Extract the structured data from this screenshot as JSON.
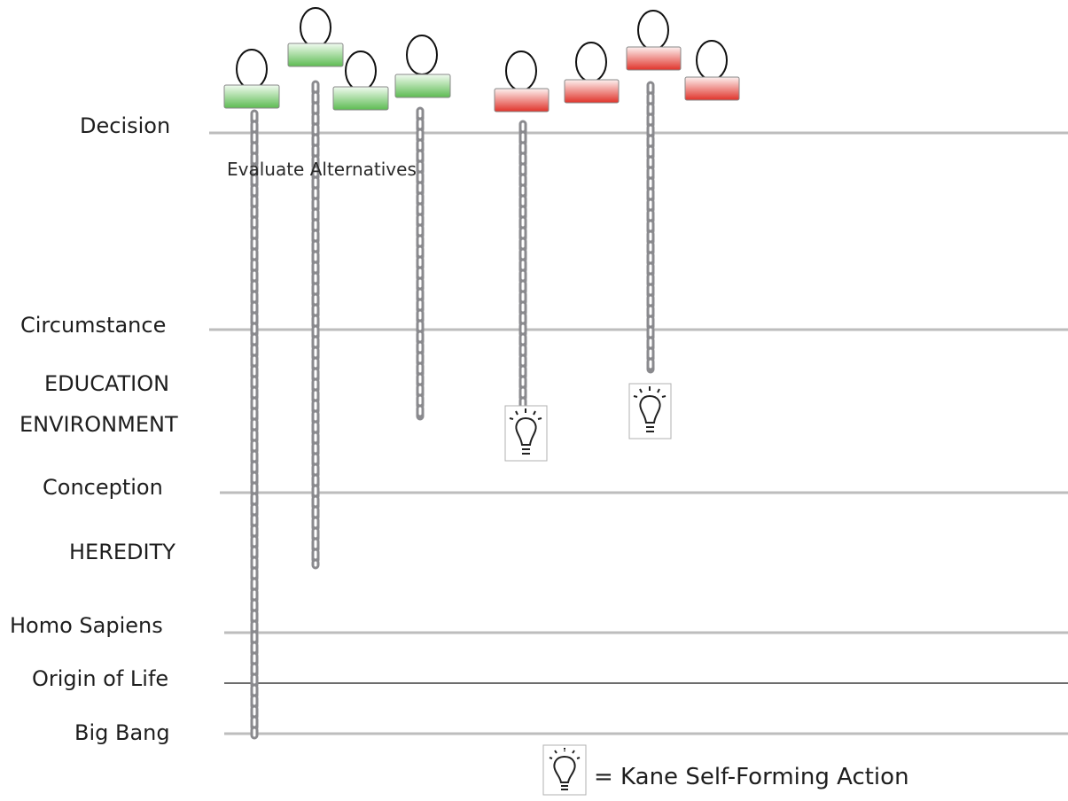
{
  "levels": [
    {
      "key": "decision",
      "label": "Decision"
    },
    {
      "key": "circumstance",
      "label": "Circumstance"
    },
    {
      "key": "conception",
      "label": "Conception"
    },
    {
      "key": "homo_sapiens",
      "label": "Homo Sapiens"
    },
    {
      "key": "origin_of_life",
      "label": "Origin of Life"
    },
    {
      "key": "big_bang",
      "label": "Big Bang"
    }
  ],
  "factors": {
    "education": "EDUCATION",
    "environment": "ENVIRONMENT",
    "heredity": "HEREDITY"
  },
  "decision_caption": "Evaluate Alternatives",
  "legend": {
    "icon": "lightbulb-icon",
    "text": "= Kane Self-Forming Action"
  },
  "agents": [
    {
      "status": "green",
      "chain_to": "big_bang",
      "self_forming_action": false
    },
    {
      "status": "green",
      "chain_to": "heredity",
      "self_forming_action": false
    },
    {
      "status": "green",
      "chain_to": "none",
      "self_forming_action": false
    },
    {
      "status": "green",
      "chain_to": "environment",
      "self_forming_action": false
    },
    {
      "status": "red",
      "chain_to": "environment",
      "self_forming_action": true
    },
    {
      "status": "red",
      "chain_to": "none",
      "self_forming_action": false
    },
    {
      "status": "red",
      "chain_to": "education",
      "self_forming_action": true
    },
    {
      "status": "red",
      "chain_to": "none",
      "self_forming_action": false
    }
  ],
  "colors": {
    "green_top": "#f1fbf0",
    "green_bottom": "#5dbb52",
    "red_top": "#fdf0ef",
    "red_bottom": "#e0332a",
    "line": "#bdbdbd",
    "chain": "#8a8a8e"
  }
}
